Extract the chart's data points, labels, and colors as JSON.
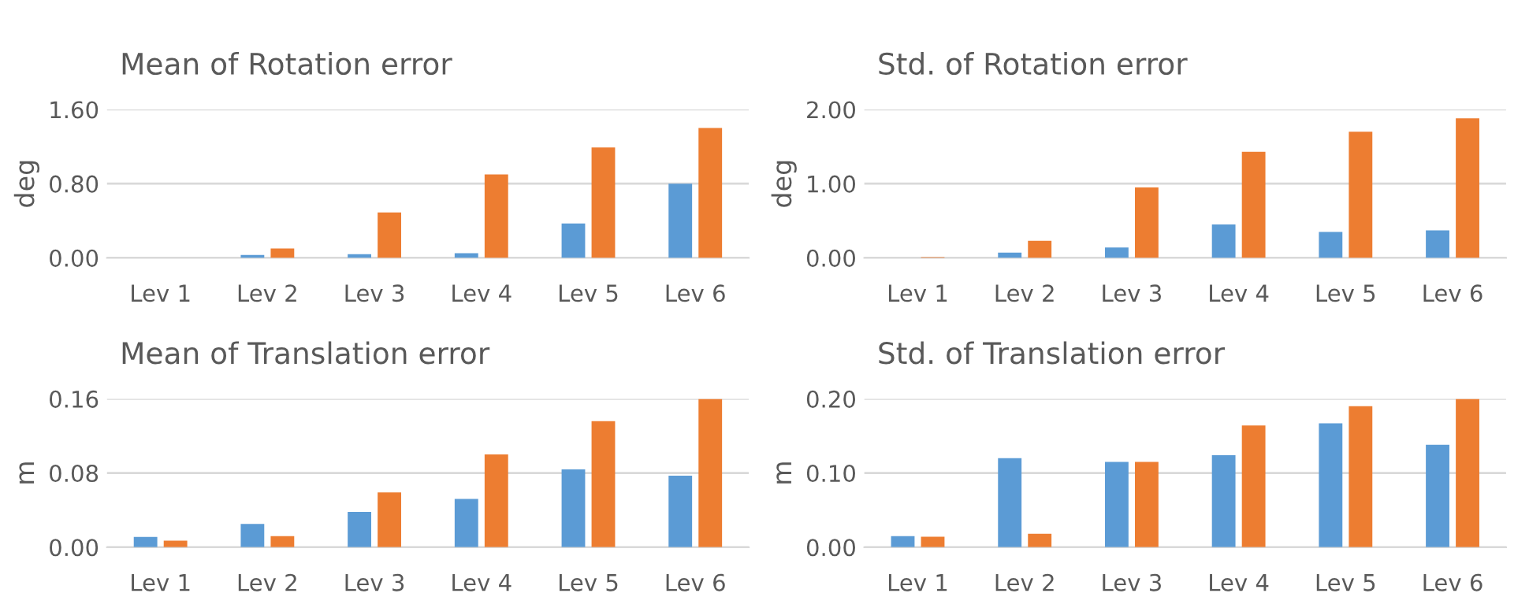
{
  "chart_data": [
    {
      "type": "bar",
      "title": "Mean of Rotation error",
      "ylabel": "deg",
      "categories": [
        "Lev 1",
        "Lev 2",
        "Lev 3",
        "Lev 4",
        "Lev 5",
        "Lev 6"
      ],
      "series": [
        {
          "color": "#5b9bd5",
          "values": [
            0,
            0.03,
            0.04,
            0.05,
            0.37,
            0.8
          ]
        },
        {
          "color": "#ed7d31",
          "values": [
            0,
            0.1,
            0.49,
            0.9,
            1.19,
            1.4
          ]
        }
      ],
      "ylim": [
        0,
        1.6
      ],
      "yticks": [
        {
          "value": 0,
          "label": "0.00"
        },
        {
          "value": 0.8,
          "label": "0.80"
        },
        {
          "value": 1.6,
          "label": "1.60"
        }
      ],
      "grid": "y"
    },
    {
      "type": "bar",
      "title": "Std. of Rotation error",
      "ylabel": "deg",
      "categories": [
        "Lev 1",
        "Lev 2",
        "Lev 3",
        "Lev 4",
        "Lev 5",
        "Lev 6"
      ],
      "series": [
        {
          "color": "#5b9bd5",
          "values": [
            0,
            0.07,
            0.14,
            0.45,
            0.35,
            0.37
          ]
        },
        {
          "color": "#ed7d31",
          "values": [
            0.01,
            0.23,
            0.95,
            1.43,
            1.7,
            1.88
          ]
        }
      ],
      "ylim": [
        0,
        2
      ],
      "yticks": [
        {
          "value": 0,
          "label": "0.00"
        },
        {
          "value": 1,
          "label": "1.00"
        },
        {
          "value": 2,
          "label": "2.00"
        }
      ],
      "grid": "y"
    },
    {
      "type": "bar",
      "title": "Mean of Translation error",
      "ylabel": "m",
      "categories": [
        "Lev 1",
        "Lev 2",
        "Lev 3",
        "Lev 4",
        "Lev 5",
        "Lev 6"
      ],
      "series": [
        {
          "color": "#5b9bd5",
          "values": [
            0.011,
            0.025,
            0.038,
            0.052,
            0.084,
            0.077
          ]
        },
        {
          "color": "#ed7d31",
          "values": [
            0.007,
            0.012,
            0.059,
            0.1,
            0.136,
            0.16
          ]
        }
      ],
      "ylim": [
        0,
        0.16
      ],
      "yticks": [
        {
          "value": 0,
          "label": "0.00"
        },
        {
          "value": 0.08,
          "label": "0.08"
        },
        {
          "value": 0.16,
          "label": "0.16"
        }
      ],
      "grid": "y"
    },
    {
      "type": "bar",
      "title": "Std. of Translation error",
      "ylabel": "m",
      "categories": [
        "Lev 1",
        "Lev 2",
        "Lev 3",
        "Lev 4",
        "Lev 5",
        "Lev 6"
      ],
      "series": [
        {
          "color": "#5b9bd5",
          "values": [
            0.015,
            0.12,
            0.115,
            0.124,
            0.167,
            0.138
          ]
        },
        {
          "color": "#ed7d31",
          "values": [
            0.014,
            0.018,
            0.115,
            0.164,
            0.19,
            0.2
          ]
        }
      ],
      "ylim": [
        0,
        0.2
      ],
      "yticks": [
        {
          "value": 0,
          "label": "0.00"
        },
        {
          "value": 0.1,
          "label": "0.10"
        },
        {
          "value": 0.2,
          "label": "0.20"
        }
      ],
      "grid": "y"
    }
  ]
}
